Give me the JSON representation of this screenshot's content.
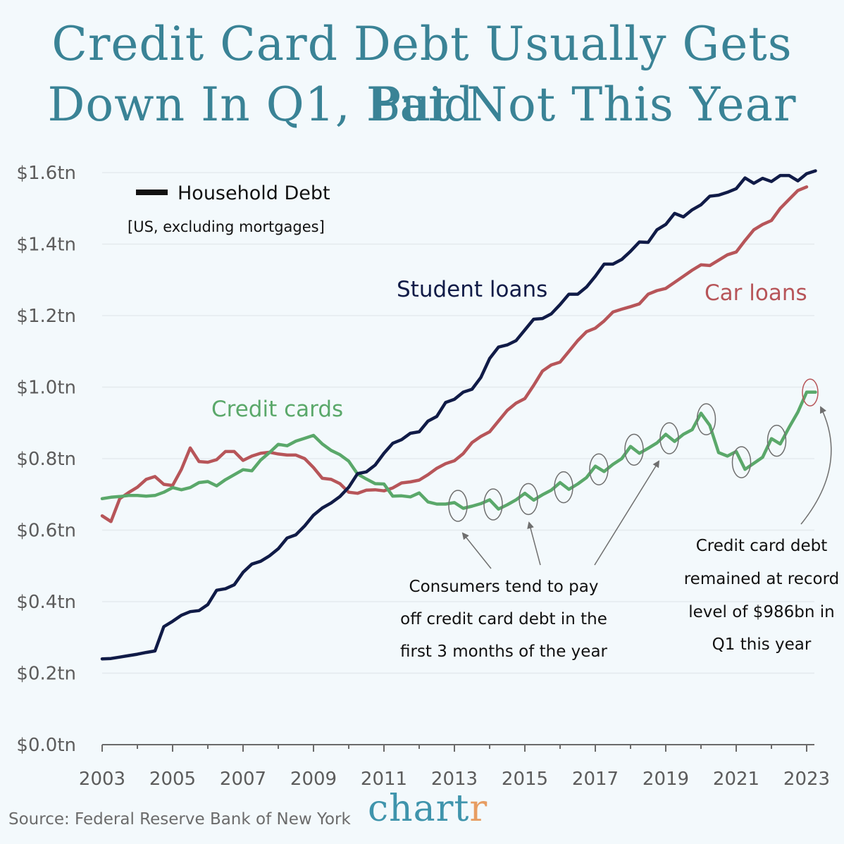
{
  "title_line1": "Credit Card Debt Usually Gets Paid",
  "title_line2": "Down In Q1, But Not This Year",
  "source": "Source: Federal Reserve Bank of New York",
  "brand": {
    "main": "chart",
    "accent": "r"
  },
  "colors": {
    "background": "#f3f9fc",
    "title": "#3a8396",
    "student_loans": "#101b47",
    "car_loans": "#b75559",
    "credit_cards": "#5aa86a",
    "brand": "#3f94ac",
    "brand_accent": "#e79d62",
    "annotation": "#6f6f6f"
  },
  "chart_data": {
    "type": "line",
    "title": "Credit Card Debt Usually Gets Paid Down In Q1, But Not This Year",
    "legend": {
      "label": "Household Debt",
      "note": "[US, excluding mortgages]"
    },
    "xlabel": "",
    "ylabel": "",
    "ylim": [
      0,
      1.6
    ],
    "xlim": [
      2003,
      2023.25
    ],
    "x_ticks": [
      2003,
      2005,
      2007,
      2009,
      2011,
      2013,
      2015,
      2017,
      2019,
      2021,
      2023
    ],
    "y_ticks": [
      "$0.0tn",
      "$0.2tn",
      "$0.4tn",
      "$0.6tn",
      "$0.8tn",
      "$1.0tn",
      "$1.2tn",
      "$1.4tn",
      "$1.6tn"
    ],
    "grid": true,
    "series": [
      {
        "name": "Student loans",
        "color": "#101b47",
        "points": [
          [
            2003.0,
            0.24
          ],
          [
            2003.25,
            0.241
          ],
          [
            2003.5,
            0.245
          ],
          [
            2003.75,
            0.249
          ],
          [
            2004.0,
            0.253
          ],
          [
            2004.25,
            0.258
          ],
          [
            2004.5,
            0.262
          ],
          [
            2004.75,
            0.33
          ],
          [
            2005.0,
            0.345
          ],
          [
            2005.25,
            0.362
          ],
          [
            2005.5,
            0.372
          ],
          [
            2005.75,
            0.375
          ],
          [
            2006.0,
            0.392
          ],
          [
            2006.25,
            0.432
          ],
          [
            2006.5,
            0.436
          ],
          [
            2006.75,
            0.447
          ],
          [
            2007.0,
            0.482
          ],
          [
            2007.25,
            0.505
          ],
          [
            2007.5,
            0.513
          ],
          [
            2007.75,
            0.528
          ],
          [
            2008.0,
            0.548
          ],
          [
            2008.25,
            0.578
          ],
          [
            2008.5,
            0.587
          ],
          [
            2008.75,
            0.612
          ],
          [
            2009.0,
            0.642
          ],
          [
            2009.25,
            0.662
          ],
          [
            2009.5,
            0.676
          ],
          [
            2009.75,
            0.694
          ],
          [
            2010.0,
            0.72
          ],
          [
            2010.25,
            0.758
          ],
          [
            2010.5,
            0.763
          ],
          [
            2010.75,
            0.782
          ],
          [
            2011.0,
            0.815
          ],
          [
            2011.25,
            0.843
          ],
          [
            2011.5,
            0.853
          ],
          [
            2011.75,
            0.871
          ],
          [
            2012.0,
            0.875
          ],
          [
            2012.25,
            0.905
          ],
          [
            2012.5,
            0.918
          ],
          [
            2012.75,
            0.957
          ],
          [
            2013.0,
            0.966
          ],
          [
            2013.25,
            0.986
          ],
          [
            2013.5,
            0.994
          ],
          [
            2013.75,
            1.027
          ],
          [
            2014.0,
            1.08
          ],
          [
            2014.25,
            1.112
          ],
          [
            2014.5,
            1.118
          ],
          [
            2014.75,
            1.13
          ],
          [
            2015.0,
            1.16
          ],
          [
            2015.25,
            1.19
          ],
          [
            2015.5,
            1.192
          ],
          [
            2015.75,
            1.205
          ],
          [
            2016.0,
            1.231
          ],
          [
            2016.25,
            1.26
          ],
          [
            2016.5,
            1.26
          ],
          [
            2016.75,
            1.28
          ],
          [
            2017.0,
            1.31
          ],
          [
            2017.25,
            1.344
          ],
          [
            2017.5,
            1.344
          ],
          [
            2017.75,
            1.357
          ],
          [
            2018.0,
            1.38
          ],
          [
            2018.25,
            1.406
          ],
          [
            2018.5,
            1.405
          ],
          [
            2018.75,
            1.44
          ],
          [
            2019.0,
            1.455
          ],
          [
            2019.25,
            1.486
          ],
          [
            2019.5,
            1.476
          ],
          [
            2019.75,
            1.496
          ],
          [
            2020.0,
            1.51
          ],
          [
            2020.25,
            1.534
          ],
          [
            2020.5,
            1.537
          ],
          [
            2020.75,
            1.545
          ],
          [
            2021.0,
            1.555
          ],
          [
            2021.25,
            1.585
          ],
          [
            2021.5,
            1.57
          ],
          [
            2021.75,
            1.584
          ],
          [
            2022.0,
            1.575
          ],
          [
            2022.25,
            1.592
          ],
          [
            2022.5,
            1.592
          ],
          [
            2022.75,
            1.577
          ],
          [
            2023.0,
            1.597
          ],
          [
            2023.25,
            1.605
          ]
        ]
      },
      {
        "name": "Car loans",
        "color": "#b75559",
        "points": [
          [
            2003.0,
            0.64
          ],
          [
            2003.25,
            0.624
          ],
          [
            2003.5,
            0.688
          ],
          [
            2003.75,
            0.705
          ],
          [
            2004.0,
            0.72
          ],
          [
            2004.25,
            0.742
          ],
          [
            2004.5,
            0.75
          ],
          [
            2004.75,
            0.728
          ],
          [
            2005.0,
            0.725
          ],
          [
            2005.25,
            0.77
          ],
          [
            2005.5,
            0.83
          ],
          [
            2005.75,
            0.792
          ],
          [
            2006.0,
            0.79
          ],
          [
            2006.25,
            0.797
          ],
          [
            2006.5,
            0.82
          ],
          [
            2006.75,
            0.82
          ],
          [
            2007.0,
            0.795
          ],
          [
            2007.25,
            0.807
          ],
          [
            2007.5,
            0.815
          ],
          [
            2007.75,
            0.818
          ],
          [
            2008.0,
            0.813
          ],
          [
            2008.25,
            0.81
          ],
          [
            2008.5,
            0.81
          ],
          [
            2008.75,
            0.8
          ],
          [
            2009.0,
            0.775
          ],
          [
            2009.25,
            0.745
          ],
          [
            2009.5,
            0.742
          ],
          [
            2009.75,
            0.73
          ],
          [
            2010.0,
            0.706
          ],
          [
            2010.25,
            0.703
          ],
          [
            2010.5,
            0.712
          ],
          [
            2010.75,
            0.713
          ],
          [
            2011.0,
            0.71
          ],
          [
            2011.25,
            0.718
          ],
          [
            2011.5,
            0.732
          ],
          [
            2011.75,
            0.735
          ],
          [
            2012.0,
            0.74
          ],
          [
            2012.25,
            0.755
          ],
          [
            2012.5,
            0.773
          ],
          [
            2012.75,
            0.786
          ],
          [
            2013.0,
            0.794
          ],
          [
            2013.25,
            0.814
          ],
          [
            2013.5,
            0.845
          ],
          [
            2013.75,
            0.862
          ],
          [
            2014.0,
            0.875
          ],
          [
            2014.25,
            0.905
          ],
          [
            2014.5,
            0.935
          ],
          [
            2014.75,
            0.955
          ],
          [
            2015.0,
            0.968
          ],
          [
            2015.25,
            1.005
          ],
          [
            2015.5,
            1.045
          ],
          [
            2015.75,
            1.062
          ],
          [
            2016.0,
            1.07
          ],
          [
            2016.25,
            1.1
          ],
          [
            2016.5,
            1.13
          ],
          [
            2016.75,
            1.155
          ],
          [
            2017.0,
            1.165
          ],
          [
            2017.25,
            1.185
          ],
          [
            2017.5,
            1.21
          ],
          [
            2017.75,
            1.218
          ],
          [
            2018.0,
            1.225
          ],
          [
            2018.25,
            1.233
          ],
          [
            2018.5,
            1.26
          ],
          [
            2018.75,
            1.27
          ],
          [
            2019.0,
            1.276
          ],
          [
            2019.25,
            1.293
          ],
          [
            2019.5,
            1.31
          ],
          [
            2019.75,
            1.327
          ],
          [
            2020.0,
            1.342
          ],
          [
            2020.25,
            1.34
          ],
          [
            2020.5,
            1.355
          ],
          [
            2020.75,
            1.37
          ],
          [
            2021.0,
            1.378
          ],
          [
            2021.25,
            1.41
          ],
          [
            2021.5,
            1.44
          ],
          [
            2021.75,
            1.455
          ],
          [
            2022.0,
            1.466
          ],
          [
            2022.25,
            1.5
          ],
          [
            2022.5,
            1.525
          ],
          [
            2022.75,
            1.55
          ],
          [
            2023.0,
            1.56
          ]
        ]
      },
      {
        "name": "Credit cards",
        "color": "#5aa86a",
        "points": [
          [
            2003.0,
            0.688
          ],
          [
            2003.25,
            0.692
          ],
          [
            2003.5,
            0.694
          ],
          [
            2003.75,
            0.697
          ],
          [
            2004.0,
            0.697
          ],
          [
            2004.25,
            0.695
          ],
          [
            2004.5,
            0.697
          ],
          [
            2004.75,
            0.706
          ],
          [
            2005.0,
            0.719
          ],
          [
            2005.25,
            0.713
          ],
          [
            2005.5,
            0.719
          ],
          [
            2005.75,
            0.733
          ],
          [
            2006.0,
            0.736
          ],
          [
            2006.25,
            0.724
          ],
          [
            2006.5,
            0.741
          ],
          [
            2006.75,
            0.755
          ],
          [
            2007.0,
            0.769
          ],
          [
            2007.25,
            0.766
          ],
          [
            2007.5,
            0.796
          ],
          [
            2007.75,
            0.817
          ],
          [
            2008.0,
            0.84
          ],
          [
            2008.25,
            0.836
          ],
          [
            2008.5,
            0.849
          ],
          [
            2008.75,
            0.857
          ],
          [
            2009.0,
            0.865
          ],
          [
            2009.25,
            0.841
          ],
          [
            2009.5,
            0.823
          ],
          [
            2009.75,
            0.811
          ],
          [
            2010.0,
            0.793
          ],
          [
            2010.25,
            0.757
          ],
          [
            2010.5,
            0.743
          ],
          [
            2010.75,
            0.73
          ],
          [
            2011.0,
            0.729
          ],
          [
            2011.25,
            0.695
          ],
          [
            2011.5,
            0.696
          ],
          [
            2011.75,
            0.693
          ],
          [
            2012.0,
            0.704
          ],
          [
            2012.25,
            0.679
          ],
          [
            2012.5,
            0.673
          ],
          [
            2012.75,
            0.673
          ],
          [
            2013.0,
            0.677
          ],
          [
            2013.25,
            0.661
          ],
          [
            2013.5,
            0.667
          ],
          [
            2013.75,
            0.674
          ],
          [
            2014.0,
            0.685
          ],
          [
            2014.25,
            0.659
          ],
          [
            2014.5,
            0.671
          ],
          [
            2014.75,
            0.685
          ],
          [
            2015.0,
            0.703
          ],
          [
            2015.25,
            0.684
          ],
          [
            2015.5,
            0.699
          ],
          [
            2015.75,
            0.712
          ],
          [
            2016.0,
            0.733
          ],
          [
            2016.25,
            0.714
          ],
          [
            2016.5,
            0.729
          ],
          [
            2016.75,
            0.747
          ],
          [
            2017.0,
            0.779
          ],
          [
            2017.25,
            0.764
          ],
          [
            2017.5,
            0.784
          ],
          [
            2017.75,
            0.8
          ],
          [
            2018.0,
            0.834
          ],
          [
            2018.25,
            0.815
          ],
          [
            2018.5,
            0.829
          ],
          [
            2018.75,
            0.844
          ],
          [
            2019.0,
            0.868
          ],
          [
            2019.25,
            0.848
          ],
          [
            2019.5,
            0.868
          ],
          [
            2019.75,
            0.881
          ],
          [
            2020.0,
            0.927
          ],
          [
            2020.25,
            0.893
          ],
          [
            2020.5,
            0.817
          ],
          [
            2020.75,
            0.807
          ],
          [
            2021.0,
            0.82
          ],
          [
            2021.25,
            0.77
          ],
          [
            2021.5,
            0.787
          ],
          [
            2021.75,
            0.804
          ],
          [
            2022.0,
            0.856
          ],
          [
            2022.25,
            0.841
          ],
          [
            2022.5,
            0.887
          ],
          [
            2022.75,
            0.93
          ],
          [
            2023.0,
            0.986
          ],
          [
            2023.25,
            0.986
          ]
        ]
      }
    ],
    "series_labels": [
      "Student loans",
      "Car loans",
      "Credit cards"
    ],
    "annotations": {
      "q1_note": [
        "Consumers tend to pay",
        "off credit card debt in the",
        "first 3 months of the year"
      ],
      "record_note": [
        "Credit card debt",
        "remained at record",
        "level of $986bn in",
        "Q1 this year"
      ],
      "q1_circles": [
        [
          2013.1,
          0.668
        ],
        [
          2014.1,
          0.672
        ],
        [
          2015.1,
          0.687
        ],
        [
          2016.1,
          0.72
        ],
        [
          2017.1,
          0.77
        ],
        [
          2018.1,
          0.825
        ],
        [
          2019.1,
          0.857
        ],
        [
          2020.15,
          0.91
        ],
        [
          2021.15,
          0.79
        ],
        [
          2022.15,
          0.85
        ]
      ],
      "record_circle": [
        2023.1,
        0.985
      ]
    }
  }
}
